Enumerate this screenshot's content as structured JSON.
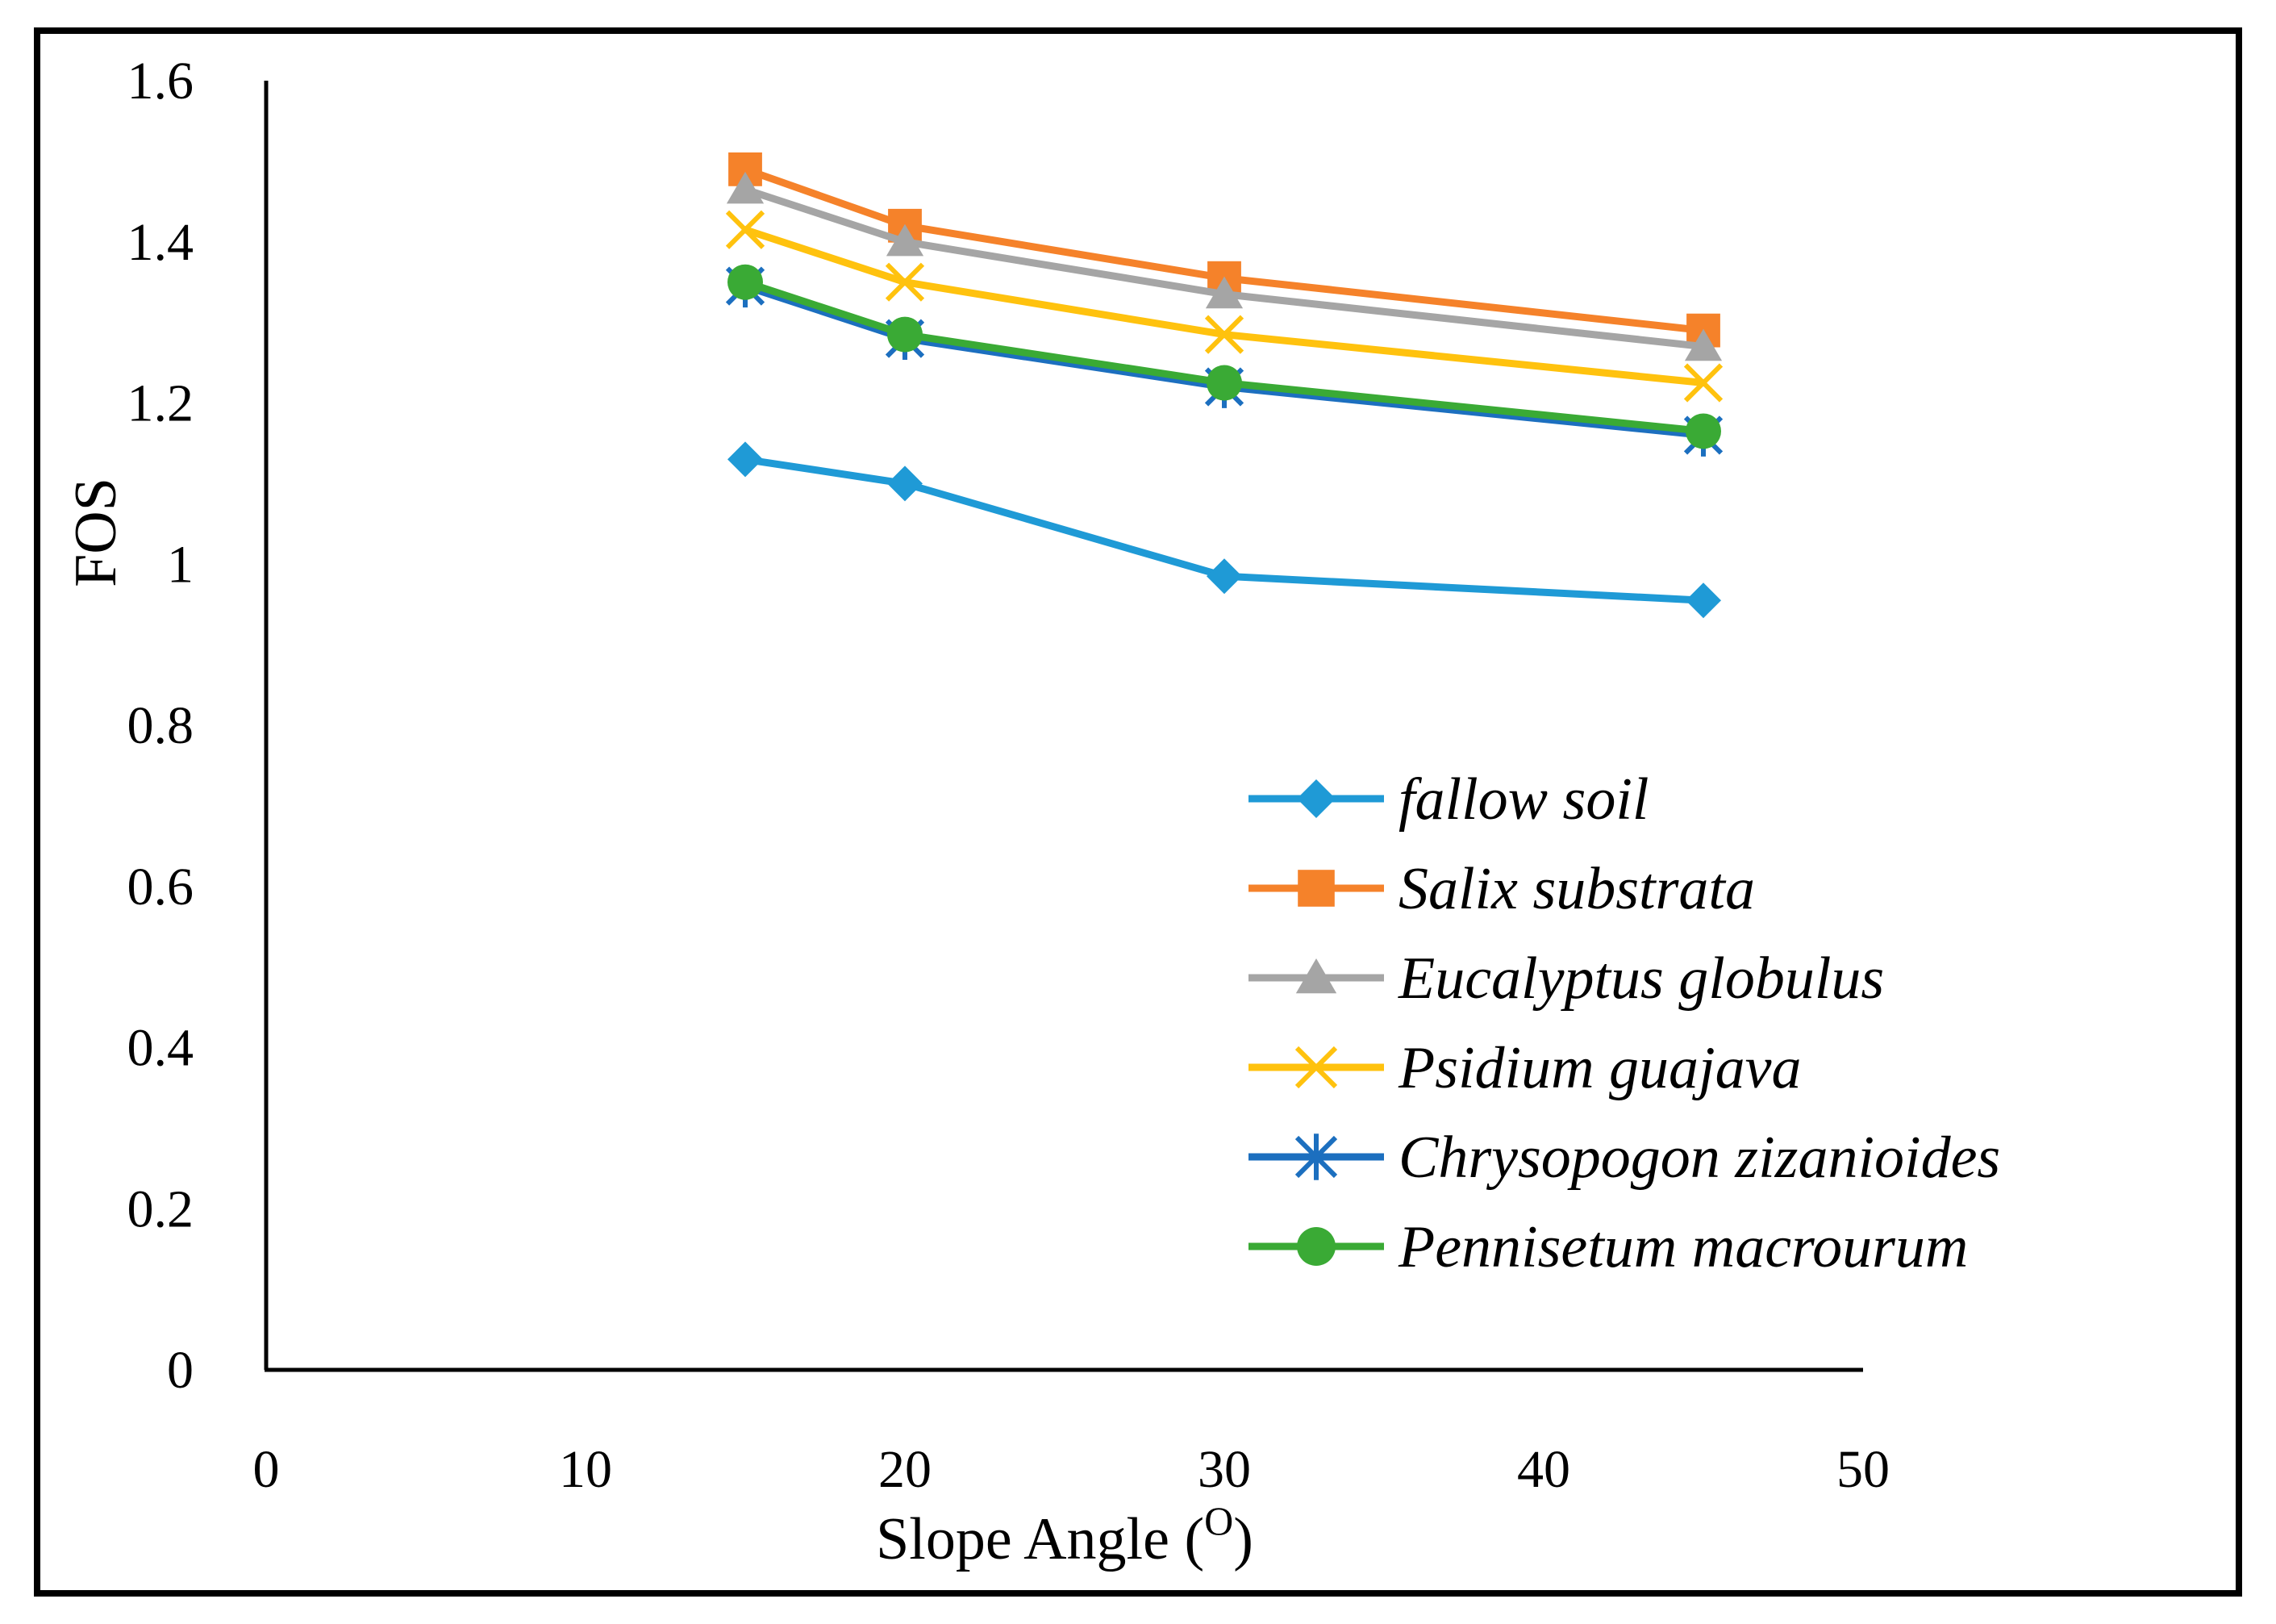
{
  "chart_data": {
    "type": "line",
    "title": "",
    "xlabel": "Slope Angle (",
    "xlabel_superscript": "O",
    "xlabel_suffix": ")",
    "ylabel": "FOS",
    "xlim": [
      0,
      50
    ],
    "ylim": [
      0,
      1.6
    ],
    "x_ticks": [
      0,
      10,
      20,
      30,
      40,
      50
    ],
    "y_ticks": [
      0,
      0.2,
      0.4,
      0.6,
      0.8,
      1,
      1.2,
      1.4,
      1.6
    ],
    "x_tick_labels": [
      "0",
      "10",
      "20",
      "30",
      "40",
      "50"
    ],
    "y_tick_labels": [
      "0",
      "0.2",
      "0.4",
      "0.6",
      "0.8",
      "1",
      "1.2",
      "1.4",
      "1.6"
    ],
    "grid": false,
    "legend_position": "lower-right",
    "x": [
      15,
      20,
      30,
      45
    ],
    "series": [
      {
        "name": "fallow soil",
        "values": [
          1.13,
          1.1,
          0.985,
          0.955
        ],
        "color": "#1f9ad6",
        "marker": "diamond"
      },
      {
        "name": "Salix substrata",
        "values": [
          1.49,
          1.42,
          1.355,
          1.29
        ],
        "color": "#f5822a",
        "marker": "square"
      },
      {
        "name": "Eucalyptus globulus",
        "values": [
          1.465,
          1.4,
          1.335,
          1.27
        ],
        "color": "#a5a5a5",
        "marker": "triangle"
      },
      {
        "name": "Psidium guajava",
        "values": [
          1.415,
          1.35,
          1.285,
          1.225
        ],
        "color": "#ffc20e",
        "marker": "x"
      },
      {
        "name": "Chrysopogon zizanioides",
        "values": [
          1.345,
          1.28,
          1.22,
          1.16
        ],
        "color": "#1c6fbf",
        "marker": "asterisk"
      },
      {
        "name": "Pennisetum macrourum",
        "values": [
          1.35,
          1.285,
          1.225,
          1.165
        ],
        "color": "#3aaa35",
        "marker": "circle"
      }
    ]
  }
}
